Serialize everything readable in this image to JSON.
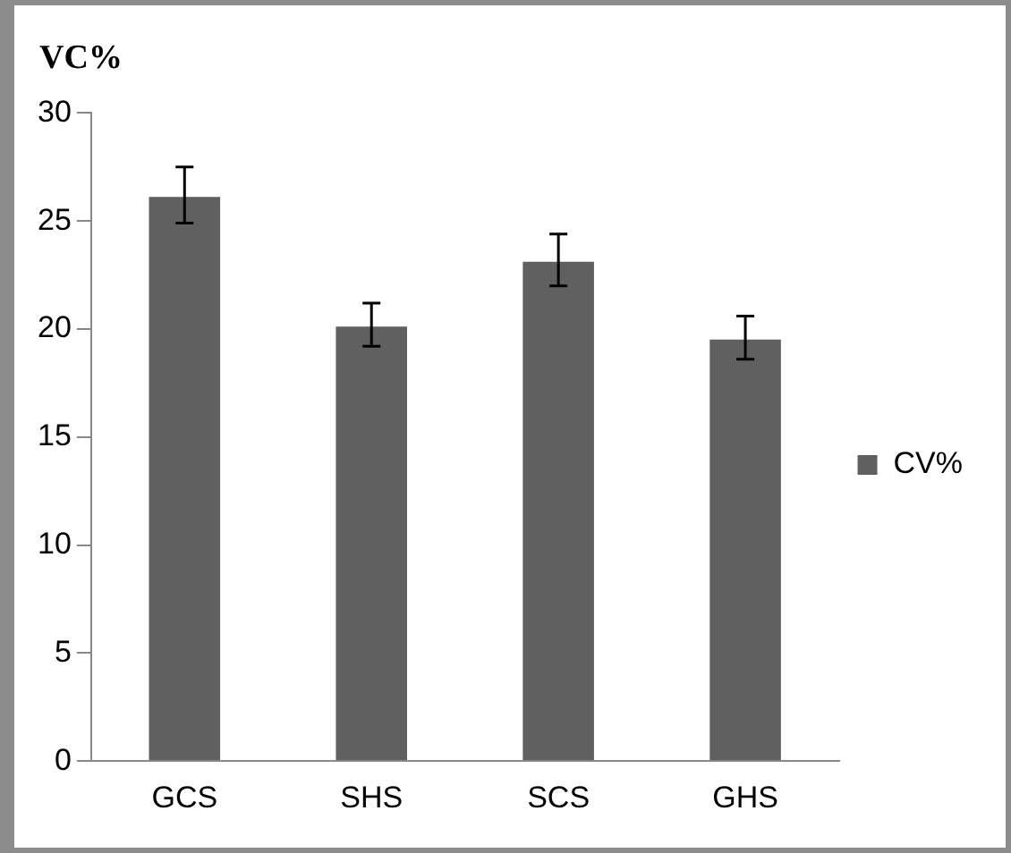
{
  "chart_data": {
    "type": "bar",
    "title": "VC%",
    "categories": [
      "GCS",
      "SHS",
      "SCS",
      "GHS"
    ],
    "series": [
      {
        "name": "CV%",
        "color": "#606060",
        "values": [
          26.2,
          20.2,
          23.2,
          19.6
        ],
        "errors": [
          1.3,
          1.0,
          1.2,
          1.0
        ]
      }
    ],
    "ylim": [
      0,
      30
    ],
    "yticks": [
      0,
      5,
      10,
      15,
      20,
      25,
      30
    ],
    "grid": false,
    "legend": "right"
  }
}
